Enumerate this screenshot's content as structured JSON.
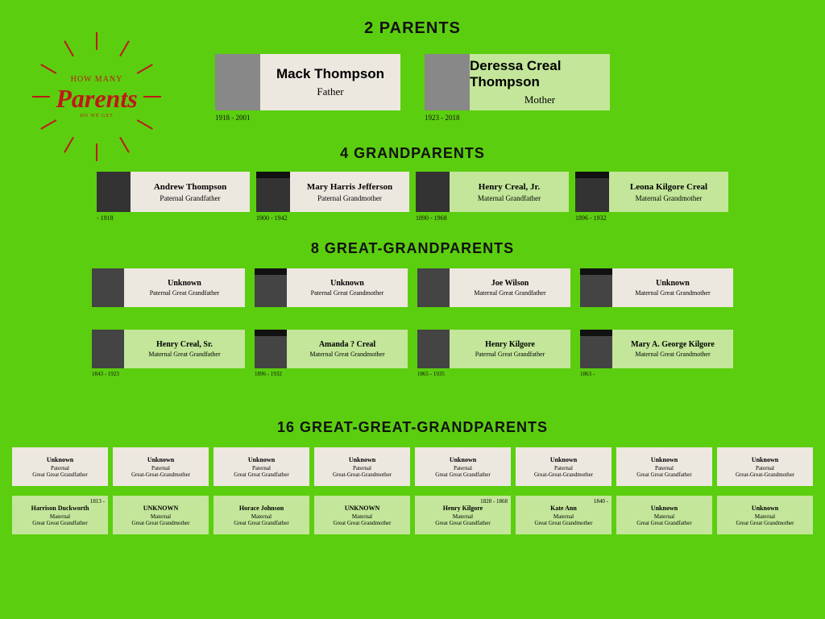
{
  "bg_color": "#5bce0f",
  "card_bg_a": "#ece7df",
  "card_bg_b": "#c3e69a",
  "accent_red": "#c01818",
  "logo": {
    "line1": "HOW MANY",
    "line2": "Parents",
    "line3": "DO WE GET"
  },
  "sections": {
    "parents": {
      "title": "2 PARENTS"
    },
    "grand": {
      "title": "4 GRANDPARENTS"
    },
    "gg": {
      "title": "8 GREAT-GRANDPARENTS"
    },
    "ggg": {
      "title": "16 GREAT-GREAT-GRANDPARENTS"
    }
  },
  "parents_cards": [
    {
      "name": "Mack Thompson",
      "rel": "Father",
      "dates": "1918 - 2001",
      "bg": "a"
    },
    {
      "name": "Deressa Creal Thompson",
      "rel": "Mother",
      "dates": "1923 - 2018",
      "bg": "b"
    }
  ],
  "grand_cards": [
    {
      "name": "Andrew Thompson",
      "rel": "Paternal Grandfather",
      "dates": " - 1918",
      "bg": "a",
      "ph": "family"
    },
    {
      "name": "Mary Harris Jefferson",
      "rel": "Paternal Grandmother",
      "dates": "1900 - 1942",
      "bg": "a",
      "ph": "sign"
    },
    {
      "name": "Henry Creal, Jr.",
      "rel": "Maternal Grandfather",
      "dates": "1890 - 1968",
      "bg": "b",
      "ph": "photo"
    },
    {
      "name": "Leona Kilgore Creal",
      "rel": "Maternal Grandmother",
      "dates": "1896 - 1932",
      "bg": "b",
      "ph": "sign"
    }
  ],
  "gg_rows": [
    [
      {
        "name": "Unknown",
        "rel": "Paternal Great Grandfather",
        "dates": "",
        "bg": "a",
        "ph": "family"
      },
      {
        "name": "Unknown",
        "rel": "Paternal Great Grandmother",
        "dates": "",
        "bg": "a",
        "ph": "sign"
      },
      {
        "name": "Joe Wilson",
        "rel": "Maternal Great Grandfather",
        "dates": "",
        "bg": "a",
        "ph": "family"
      },
      {
        "name": "Unknown",
        "rel": "Maternal Great Grandmother",
        "dates": "",
        "bg": "a",
        "ph": "sign"
      }
    ],
    [
      {
        "name": "Henry Creal, Sr.",
        "rel": "Maternal Great Grandfather",
        "dates": "1843 - 1923",
        "bg": "b",
        "ph": "photo"
      },
      {
        "name": "Amanda  ?  Creal",
        "rel": "Maternal Great Grandmother",
        "dates": "1896 - 1932",
        "bg": "b",
        "ph": "sign"
      },
      {
        "name": "Henry Kilgore",
        "rel": "Paternal Great Grandfather",
        "dates": "1865 - 1935",
        "bg": "b",
        "ph": "family"
      },
      {
        "name": "Mary A. George Kilgore",
        "rel": "Maternal Great Grandmother",
        "dates": "1863 -",
        "bg": "b",
        "ph": "sign"
      }
    ]
  ],
  "ggg_rows": [
    [
      {
        "name": "Unknown",
        "side": "Paternal",
        "rel": "Great Great Grandfather",
        "dates": "",
        "bg": "a"
      },
      {
        "name": "Unknown",
        "side": "Paternal",
        "rel": "Great-Great-Grandmother",
        "dates": "",
        "bg": "a"
      },
      {
        "name": "Unknown",
        "side": "Paternal",
        "rel": "Great Great Grandfather",
        "dates": "",
        "bg": "a"
      },
      {
        "name": "Unknown",
        "side": "Paternal",
        "rel": "Great-Great-Grandmother",
        "dates": "",
        "bg": "a"
      },
      {
        "name": "Unknown",
        "side": "Paternal",
        "rel": "Great Great Grandfather",
        "dates": "",
        "bg": "a"
      },
      {
        "name": "Unknown",
        "side": "Paternal",
        "rel": "Great-Great-Grandmother",
        "dates": "",
        "bg": "a"
      },
      {
        "name": "Unknown",
        "side": "Paternal",
        "rel": "Great Great Grandfather",
        "dates": "",
        "bg": "a"
      },
      {
        "name": "Unknown",
        "side": "Paternal",
        "rel": "Great-Great-Grandmother",
        "dates": "",
        "bg": "a"
      }
    ],
    [
      {
        "name": "Harrison Duckworth",
        "side": "Maternal",
        "rel": "Great Great Grandfather",
        "dates": "1813 -",
        "bg": "b"
      },
      {
        "name": "UNKNOWN",
        "side": "Maternal",
        "rel": "Great Great Grandmother",
        "dates": "",
        "bg": "b"
      },
      {
        "name": "Horace Johnson",
        "side": "Maternal",
        "rel": "Great Great Grandfather",
        "dates": "",
        "bg": "b"
      },
      {
        "name": "UNKNOWN",
        "side": "Maternal",
        "rel": "Great Great Grandmother",
        "dates": "",
        "bg": "b"
      },
      {
        "name": "Henry Kilgore",
        "side": "Maternal",
        "rel": "Great Great Grandfather",
        "dates": "1828 - 1868",
        "bg": "b"
      },
      {
        "name": "Kate Ann",
        "side": "Maternal",
        "rel": "Great Great Grandmother",
        "dates": "1840 -",
        "bg": "b"
      },
      {
        "name": "Unknown",
        "side": "Maternal",
        "rel": "Great Great Grandfather",
        "dates": "",
        "bg": "b"
      },
      {
        "name": "Unknown",
        "side": "Maternal",
        "rel": "Great Great Grandmother",
        "dates": "",
        "bg": "b"
      }
    ]
  ]
}
